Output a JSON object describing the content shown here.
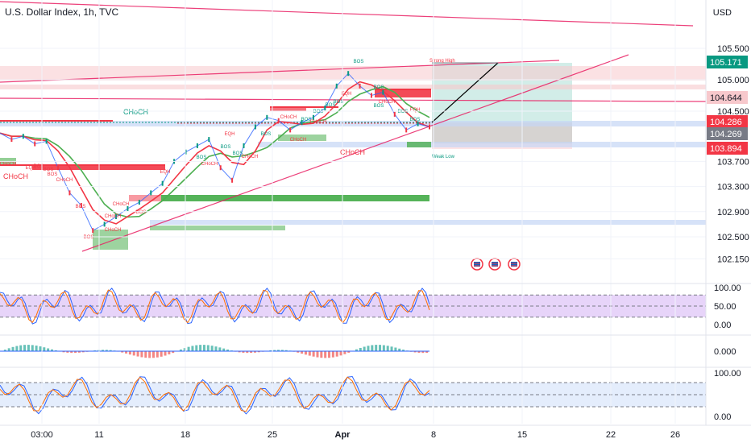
{
  "header": {
    "title": "U.S. Dollar Index, 1h, TVC",
    "currency": "USD"
  },
  "chart_data": {
    "type": "line",
    "symbol": "U.S. Dollar Index",
    "interval": "1h",
    "source": "TVC",
    "price_axis": {
      "ticks": [
        "105.500",
        "105.000",
        "104.500",
        "103.700",
        "103.300",
        "102.900",
        "102.500",
        "102.150"
      ],
      "badges": [
        {
          "value": "105.171",
          "color": "#089981"
        },
        {
          "value": "104.644",
          "color": "#f7c8cc"
        },
        {
          "value": "104.286",
          "color": "#f23645"
        },
        {
          "value": "104.269",
          "color": "#787b86"
        },
        {
          "value": "103.894",
          "color": "#f23645"
        }
      ]
    },
    "time_axis": [
      "03:00",
      "11",
      "18",
      "25",
      "Apr",
      "8",
      "15",
      "22",
      "26"
    ],
    "close_path": [
      [
        "03:00",
        104.15
      ],
      [
        "03:00",
        104.05
      ],
      [
        "03:00",
        104.1
      ],
      [
        "03:00",
        103.98
      ],
      [
        "03:00",
        104.02
      ],
      [
        "11",
        103.6
      ],
      [
        "11",
        103.2
      ],
      [
        "11",
        103.0
      ],
      [
        "11",
        102.6
      ],
      [
        "11",
        102.7
      ],
      [
        "11",
        102.82
      ],
      [
        "11",
        102.95
      ],
      [
        "11",
        103.05
      ],
      [
        "18",
        103.2
      ],
      [
        "18",
        103.35
      ],
      [
        "18",
        103.7
      ],
      [
        "18",
        103.85
      ],
      [
        "18",
        103.95
      ],
      [
        "18",
        104.05
      ],
      [
        "18",
        103.6
      ],
      [
        "18",
        103.4
      ],
      [
        "25",
        103.95
      ],
      [
        "25",
        104.25
      ],
      [
        "25",
        104.4
      ],
      [
        "25",
        104.35
      ],
      [
        "25",
        104.2
      ],
      [
        "25",
        104.32
      ],
      [
        "25",
        104.4
      ],
      [
        "Apr",
        104.55
      ],
      [
        "Apr",
        104.9
      ],
      [
        "Apr",
        105.1
      ],
      [
        "Apr",
        104.9
      ],
      [
        "Apr",
        104.75
      ],
      [
        "Apr",
        104.8
      ],
      [
        "8",
        104.45
      ],
      [
        "8",
        104.2
      ],
      [
        "8",
        104.3
      ],
      [
        "8",
        104.25
      ]
    ],
    "annotations": {
      "structure": [
        "BOS",
        "CHoCH",
        "EQH",
        "CHoCH",
        "BOS",
        "BOS",
        "CHoCH",
        "BOS",
        "BOS",
        "CHoCH",
        "CHoCH",
        "BOS",
        "EQH",
        "BOS",
        "CHoCH",
        "BOS",
        "EQH",
        "CHoCH",
        "BOS",
        "BOS",
        "CHoCH",
        "CHoCH",
        "BOS",
        "BOS",
        "BOS",
        "EQH",
        "BOS",
        "BOS",
        "BOS",
        "CHoCH",
        "BOS",
        "BOS",
        "BOS",
        "EQH",
        "CHoCH"
      ],
      "strong_high": "Strong High",
      "weak_low": "Weak Low"
    },
    "oscillators": [
      {
        "ticks": [
          "100.00",
          "50.00",
          "0.00"
        ],
        "band": [
          20,
          80
        ]
      },
      {
        "ticks": [
          "0.000"
        ]
      },
      {
        "ticks": [
          "100.00",
          "0.00"
        ],
        "band": [
          20,
          80
        ]
      }
    ],
    "colors": {
      "up": "#089981",
      "down": "#f23645",
      "trendline": "#e91e63",
      "band_purple": "#e1c9f7",
      "band_blue": "#dde8fb"
    },
    "grid": true
  }
}
